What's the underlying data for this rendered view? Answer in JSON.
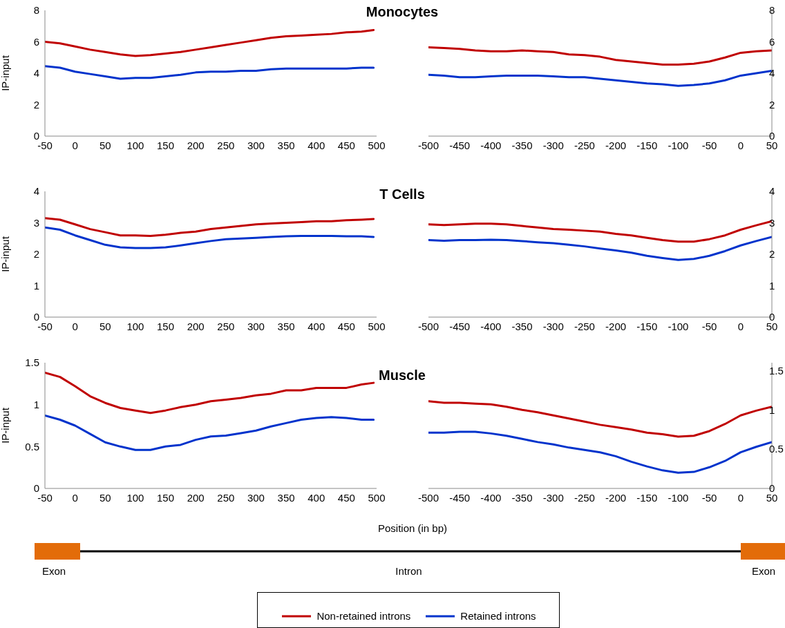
{
  "chart_data": [
    {
      "type": "line",
      "title": "Monocytes",
      "ylabel": "IP-input",
      "x": [
        -50,
        -25,
        0,
        25,
        50,
        75,
        100,
        125,
        150,
        175,
        200,
        225,
        250,
        275,
        300,
        325,
        350,
        375,
        400,
        425,
        450,
        475,
        495
      ],
      "xlim": [
        -50,
        500
      ],
      "xticks": [
        -50,
        0,
        50,
        100,
        150,
        200,
        250,
        300,
        350,
        400,
        450,
        500
      ],
      "ylim": [
        0,
        8
      ],
      "yticks": [
        0,
        2,
        4,
        6,
        8
      ],
      "series": [
        {
          "color": "#c00000",
          "values": [
            6.0,
            5.9,
            5.7,
            5.5,
            5.35,
            5.2,
            5.1,
            5.15,
            5.25,
            5.35,
            5.5,
            5.65,
            5.8,
            5.95,
            6.1,
            6.25,
            6.35,
            6.4,
            6.45,
            6.5,
            6.6,
            6.65,
            6.75
          ]
        },
        {
          "color": "#0033cc",
          "values": [
            4.45,
            4.35,
            4.1,
            3.95,
            3.8,
            3.65,
            3.7,
            3.7,
            3.8,
            3.9,
            4.05,
            4.1,
            4.1,
            4.15,
            4.15,
            4.25,
            4.3,
            4.3,
            4.3,
            4.3,
            4.3,
            4.35,
            4.35
          ]
        }
      ]
    },
    {
      "type": "line",
      "x": [
        -500,
        -475,
        -450,
        -425,
        -400,
        -375,
        -350,
        -325,
        -300,
        -275,
        -250,
        -225,
        -200,
        -175,
        -150,
        -125,
        -100,
        -75,
        -50,
        -25,
        0,
        25,
        50
      ],
      "xlim": [
        -500,
        50
      ],
      "xticks": [
        -500,
        -450,
        -400,
        -350,
        -300,
        -250,
        -200,
        -150,
        -100,
        -50,
        0,
        50
      ],
      "y2lim": [
        0,
        8
      ],
      "y2ticks": [
        0,
        2,
        4,
        6,
        8
      ],
      "series": [
        {
          "color": "#c00000",
          "axis": "y2",
          "values": [
            5.65,
            5.6,
            5.55,
            5.45,
            5.4,
            5.4,
            5.45,
            5.4,
            5.35,
            5.2,
            5.15,
            5.05,
            4.85,
            4.75,
            4.65,
            4.55,
            4.55,
            4.6,
            4.75,
            5.0,
            5.3,
            5.4,
            5.45
          ]
        },
        {
          "color": "#0033cc",
          "axis": "y2",
          "values": [
            3.9,
            3.85,
            3.75,
            3.75,
            3.8,
            3.85,
            3.85,
            3.85,
            3.8,
            3.75,
            3.75,
            3.65,
            3.55,
            3.45,
            3.35,
            3.3,
            3.2,
            3.25,
            3.35,
            3.55,
            3.85,
            4.0,
            4.15
          ]
        }
      ]
    },
    {
      "type": "line",
      "title": "T Cells",
      "ylabel": "IP-input",
      "x": [
        -50,
        -25,
        0,
        25,
        50,
        75,
        100,
        125,
        150,
        175,
        200,
        225,
        250,
        275,
        300,
        325,
        350,
        375,
        400,
        425,
        450,
        475,
        495
      ],
      "xlim": [
        -50,
        500
      ],
      "xticks": [
        -50,
        0,
        50,
        100,
        150,
        200,
        250,
        300,
        350,
        400,
        450,
        500
      ],
      "ylim": [
        0,
        4
      ],
      "yticks": [
        0,
        1,
        2,
        3,
        4
      ],
      "series": [
        {
          "color": "#c00000",
          "values": [
            3.15,
            3.1,
            2.95,
            2.8,
            2.7,
            2.6,
            2.6,
            2.58,
            2.62,
            2.68,
            2.72,
            2.8,
            2.85,
            2.9,
            2.95,
            2.98,
            3.0,
            3.02,
            3.05,
            3.05,
            3.08,
            3.1,
            3.12
          ]
        },
        {
          "color": "#0033cc",
          "values": [
            2.85,
            2.78,
            2.6,
            2.45,
            2.3,
            2.22,
            2.2,
            2.2,
            2.22,
            2.28,
            2.35,
            2.42,
            2.48,
            2.5,
            2.52,
            2.55,
            2.57,
            2.58,
            2.58,
            2.58,
            2.57,
            2.57,
            2.55
          ]
        }
      ]
    },
    {
      "type": "line",
      "x": [
        -500,
        -475,
        -450,
        -425,
        -400,
        -375,
        -350,
        -325,
        -300,
        -275,
        -250,
        -225,
        -200,
        -175,
        -150,
        -125,
        -100,
        -75,
        -50,
        -25,
        0,
        25,
        50
      ],
      "xlim": [
        -500,
        50
      ],
      "xticks": [
        -500,
        -450,
        -400,
        -350,
        -300,
        -250,
        -200,
        -150,
        -100,
        -50,
        0,
        50
      ],
      "y2lim": [
        0,
        4
      ],
      "y2ticks": [
        0,
        1,
        2,
        3,
        4
      ],
      "series": [
        {
          "color": "#c00000",
          "axis": "y2",
          "values": [
            2.95,
            2.93,
            2.95,
            2.97,
            2.97,
            2.95,
            2.9,
            2.85,
            2.8,
            2.78,
            2.75,
            2.72,
            2.65,
            2.6,
            2.52,
            2.45,
            2.4,
            2.4,
            2.48,
            2.6,
            2.78,
            2.92,
            3.05
          ]
        },
        {
          "color": "#0033cc",
          "axis": "y2",
          "values": [
            2.45,
            2.43,
            2.45,
            2.45,
            2.46,
            2.45,
            2.42,
            2.38,
            2.35,
            2.3,
            2.25,
            2.18,
            2.12,
            2.05,
            1.95,
            1.88,
            1.82,
            1.85,
            1.95,
            2.1,
            2.28,
            2.42,
            2.55
          ]
        }
      ]
    },
    {
      "type": "line",
      "title": "Muscle",
      "ylabel": "IP-input",
      "xlabel": "Position (in bp)",
      "legend": "bottom",
      "annotations": [
        "Exon",
        "Intron",
        "Exon"
      ],
      "x": [
        -50,
        -25,
        0,
        25,
        50,
        75,
        100,
        125,
        150,
        175,
        200,
        225,
        250,
        275,
        300,
        325,
        350,
        375,
        400,
        425,
        450,
        475,
        495
      ],
      "xlim": [
        -50,
        500
      ],
      "xticks": [
        -50,
        0,
        50,
        100,
        150,
        200,
        250,
        300,
        350,
        400,
        450,
        500
      ],
      "ylim": [
        0,
        1.5
      ],
      "yticks": [
        0,
        0.5,
        1,
        1.5
      ],
      "series": [
        {
          "name": "Non-retained introns",
          "color": "#c00000",
          "values": [
            1.38,
            1.33,
            1.22,
            1.1,
            1.02,
            0.96,
            0.93,
            0.9,
            0.93,
            0.97,
            1.0,
            1.04,
            1.06,
            1.08,
            1.11,
            1.13,
            1.17,
            1.17,
            1.2,
            1.2,
            1.2,
            1.24,
            1.26
          ]
        },
        {
          "name": "Retained introns",
          "color": "#0033cc",
          "values": [
            0.87,
            0.82,
            0.75,
            0.65,
            0.55,
            0.5,
            0.46,
            0.46,
            0.5,
            0.52,
            0.58,
            0.62,
            0.63,
            0.66,
            0.69,
            0.74,
            0.78,
            0.82,
            0.84,
            0.85,
            0.84,
            0.82,
            0.82
          ]
        }
      ]
    },
    {
      "type": "line",
      "x": [
        -500,
        -475,
        -450,
        -425,
        -400,
        -375,
        -350,
        -325,
        -300,
        -275,
        -250,
        -225,
        -200,
        -175,
        -150,
        -125,
        -100,
        -75,
        -50,
        -25,
        0,
        25,
        50
      ],
      "xlim": [
        -500,
        50
      ],
      "xticks": [
        -500,
        -450,
        -400,
        -350,
        -300,
        -250,
        -200,
        -150,
        -100,
        -50,
        0,
        50
      ],
      "y2lim": [
        0,
        1.6
      ],
      "y2ticks": [
        0,
        0.5,
        1,
        1.5
      ],
      "series": [
        {
          "color": "#c00000",
          "axis": "y2",
          "values": [
            1.11,
            1.09,
            1.09,
            1.08,
            1.07,
            1.04,
            1.0,
            0.97,
            0.93,
            0.89,
            0.85,
            0.81,
            0.78,
            0.75,
            0.71,
            0.69,
            0.66,
            0.67,
            0.73,
            0.82,
            0.93,
            0.99,
            1.04
          ]
        },
        {
          "color": "#0033cc",
          "axis": "y2",
          "values": [
            0.71,
            0.71,
            0.72,
            0.72,
            0.7,
            0.67,
            0.63,
            0.59,
            0.56,
            0.52,
            0.49,
            0.46,
            0.41,
            0.34,
            0.28,
            0.23,
            0.2,
            0.21,
            0.27,
            0.35,
            0.46,
            0.53,
            0.59
          ]
        }
      ]
    }
  ]
}
